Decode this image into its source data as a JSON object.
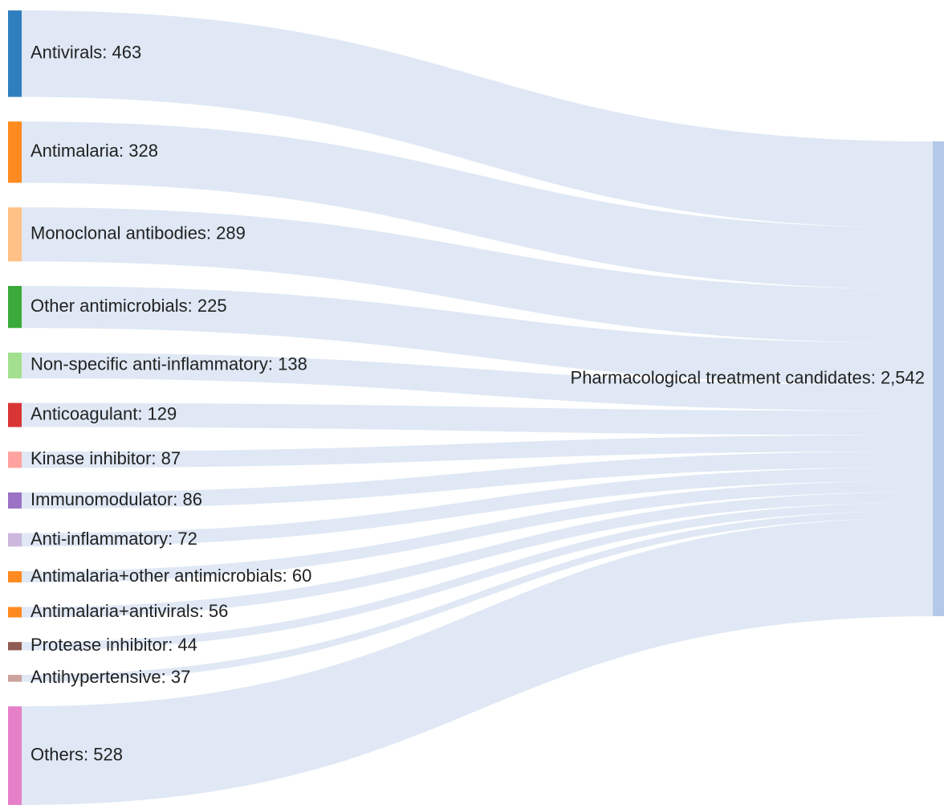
{
  "chart_data": {
    "type": "sankey",
    "sources": [
      {
        "label": "Antivirals: 463",
        "value": 463,
        "color": "#2f7fbf"
      },
      {
        "label": "Antimalaria: 328",
        "value": 328,
        "color": "#ff8a1f"
      },
      {
        "label": "Monoclonal antibodies: 289",
        "value": 289,
        "color": "#ffc185"
      },
      {
        "label": "Other antimicrobials: 225",
        "value": 225,
        "color": "#3aaa3a"
      },
      {
        "label": "Non-specific anti-inflammatory: 138",
        "value": 138,
        "color": "#a2e08f"
      },
      {
        "label": "Anticoagulant: 129",
        "value": 129,
        "color": "#d93535"
      },
      {
        "label": "Kinase inhibitor: 87",
        "value": 87,
        "color": "#ffa3a0"
      },
      {
        "label": "Immunomodulator: 86",
        "value": 86,
        "color": "#9b72c4"
      },
      {
        "label": "Anti-inflammatory: 72",
        "value": 72,
        "color": "#cbb8dc"
      },
      {
        "label": "Antimalaria+other antimicrobials: 60",
        "value": 60,
        "color": "#ff8a1f"
      },
      {
        "label": "Antimalaria+antivirals: 56",
        "value": 56,
        "color": "#ff8a1f"
      },
      {
        "label": "Protease inhibitor: 44",
        "value": 44,
        "color": "#8f5b52"
      },
      {
        "label": "Antihypertensive: 37",
        "value": 37,
        "color": "#cba39c"
      },
      {
        "label": "Others: 528",
        "value": 528,
        "color": "#e580c8"
      }
    ],
    "target": {
      "label": "Pharmacological treatment candidates: 2,542",
      "value": 2542,
      "color": "#b3c9e8"
    },
    "link_color": "#dce6f3"
  }
}
